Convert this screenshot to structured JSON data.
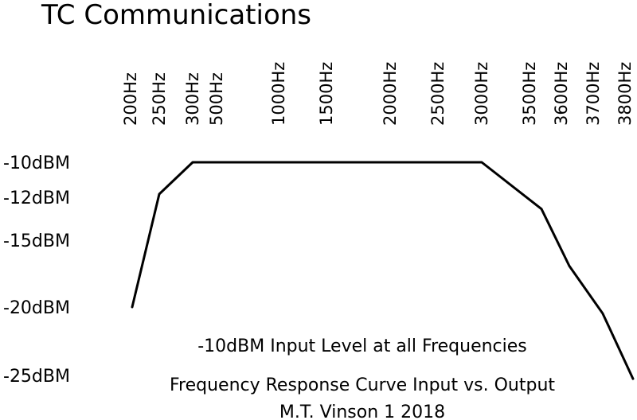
{
  "chart_data": {
    "type": "line",
    "title": "TC Communications",
    "x_tick_labels": [
      "200Hz",
      "250Hz",
      "300Hz",
      "500Hz",
      "1000Hz",
      "1500Hz",
      "2000Hz",
      "2500Hz",
      "3000Hz",
      "3500Hz",
      "3600Hz",
      "3700Hz",
      "3800Hz"
    ],
    "y_tick_labels": [
      "-10dBM",
      "-12dBM",
      "-15dBM",
      "-20dBM",
      "-25dBM"
    ],
    "x": [
      "200Hz",
      "250Hz",
      "300Hz",
      "500Hz",
      "1000Hz",
      "1500Hz",
      "2000Hz",
      "2500Hz",
      "3000Hz",
      "3500Hz",
      "3600Hz",
      "3700Hz",
      "3800Hz"
    ],
    "series": [
      {
        "values": [
          -20,
          -12,
          -10,
          -10,
          -10,
          -10,
          -10,
          -10,
          -10,
          -13,
          -17,
          -20.5,
          -25.5
        ]
      }
    ],
    "annotations": [
      "-10dBM Input Level at all Frequencies",
      "Frequency Response Curve Input vs. Output",
      "M.T. Vinson 1  2018"
    ],
    "grid": false,
    "line_color": "#000000"
  }
}
